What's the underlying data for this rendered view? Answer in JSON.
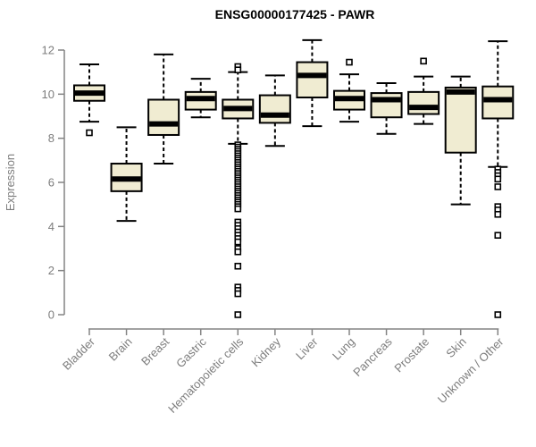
{
  "chart_data": {
    "type": "boxplot",
    "title": "ENSG00000177425 - PAWR",
    "ylabel": "Expression",
    "xlabel": "",
    "ylim": [
      0,
      12
    ],
    "yticks": [
      0,
      2,
      4,
      6,
      8,
      10,
      12
    ],
    "grid": false,
    "legend": "none",
    "categories": [
      "Bladder",
      "Brain",
      "Breast",
      "Gastric",
      "Hematopoietic cells",
      "Kidney",
      "Liver",
      "Lung",
      "Pancreas",
      "Prostate",
      "Skin",
      "Unknown / Other"
    ],
    "series": [
      {
        "category": "Bladder",
        "whisker_low": 8.75,
        "q1": 9.7,
        "median": 10.05,
        "q3": 10.4,
        "whisker_high": 11.35,
        "outliers": [
          8.25
        ]
      },
      {
        "category": "Brain",
        "whisker_low": 4.25,
        "q1": 5.6,
        "median": 6.15,
        "q3": 6.85,
        "whisker_high": 8.5,
        "outliers": []
      },
      {
        "category": "Breast",
        "whisker_low": 6.85,
        "q1": 8.15,
        "median": 8.65,
        "q3": 9.75,
        "whisker_high": 11.8,
        "outliers": []
      },
      {
        "category": "Gastric",
        "whisker_low": 8.95,
        "q1": 9.3,
        "median": 9.8,
        "q3": 10.1,
        "whisker_high": 10.7,
        "outliers": []
      },
      {
        "category": "Hematopoietic cells",
        "whisker_low": 7.75,
        "q1": 8.9,
        "median": 9.35,
        "q3": 9.75,
        "whisker_high": 11.0,
        "outliers": [
          11.25,
          11.1,
          7.7,
          7.6,
          7.5,
          7.4,
          7.3,
          7.2,
          7.1,
          7.0,
          6.9,
          6.8,
          6.7,
          6.6,
          6.5,
          6.4,
          6.3,
          6.2,
          6.1,
          6.0,
          5.9,
          5.8,
          5.7,
          5.6,
          5.5,
          5.4,
          5.3,
          5.2,
          5.1,
          5.0,
          4.9,
          4.8,
          4.2,
          4.05,
          3.9,
          3.75,
          3.6,
          3.45,
          3.3,
          3.0,
          2.85,
          2.2,
          1.25,
          1.1,
          0.95,
          0.0
        ]
      },
      {
        "category": "Kidney",
        "whisker_low": 7.65,
        "q1": 8.7,
        "median": 9.05,
        "q3": 9.95,
        "whisker_high": 10.85,
        "outliers": []
      },
      {
        "category": "Liver",
        "whisker_low": 8.55,
        "q1": 9.85,
        "median": 10.85,
        "q3": 11.45,
        "whisker_high": 12.45,
        "outliers": []
      },
      {
        "category": "Lung",
        "whisker_low": 8.75,
        "q1": 9.3,
        "median": 9.8,
        "q3": 10.15,
        "whisker_high": 10.9,
        "outliers": [
          11.45
        ]
      },
      {
        "category": "Pancreas",
        "whisker_low": 8.2,
        "q1": 8.95,
        "median": 9.75,
        "q3": 10.05,
        "whisker_high": 10.5,
        "outliers": []
      },
      {
        "category": "Prostate",
        "whisker_low": 8.65,
        "q1": 9.1,
        "median": 9.4,
        "q3": 10.1,
        "whisker_high": 10.8,
        "outliers": [
          11.5
        ]
      },
      {
        "category": "Skin",
        "whisker_low": 5.0,
        "q1": 7.35,
        "median": 10.1,
        "q3": 10.3,
        "whisker_high": 10.8,
        "outliers": []
      },
      {
        "category": "Unknown / Other",
        "whisker_low": 6.7,
        "q1": 8.9,
        "median": 9.75,
        "q3": 10.35,
        "whisker_high": 12.4,
        "outliers": [
          6.6,
          6.45,
          6.3,
          6.15,
          5.8,
          4.9,
          4.75,
          4.55,
          3.6,
          0.0
        ]
      }
    ],
    "colors": {
      "box_fill": "#f0ecd2",
      "line": "#000000",
      "axis": "#848484",
      "tick_label": "#7d7d7d",
      "title": "#000000",
      "background": "#ffffff"
    }
  }
}
